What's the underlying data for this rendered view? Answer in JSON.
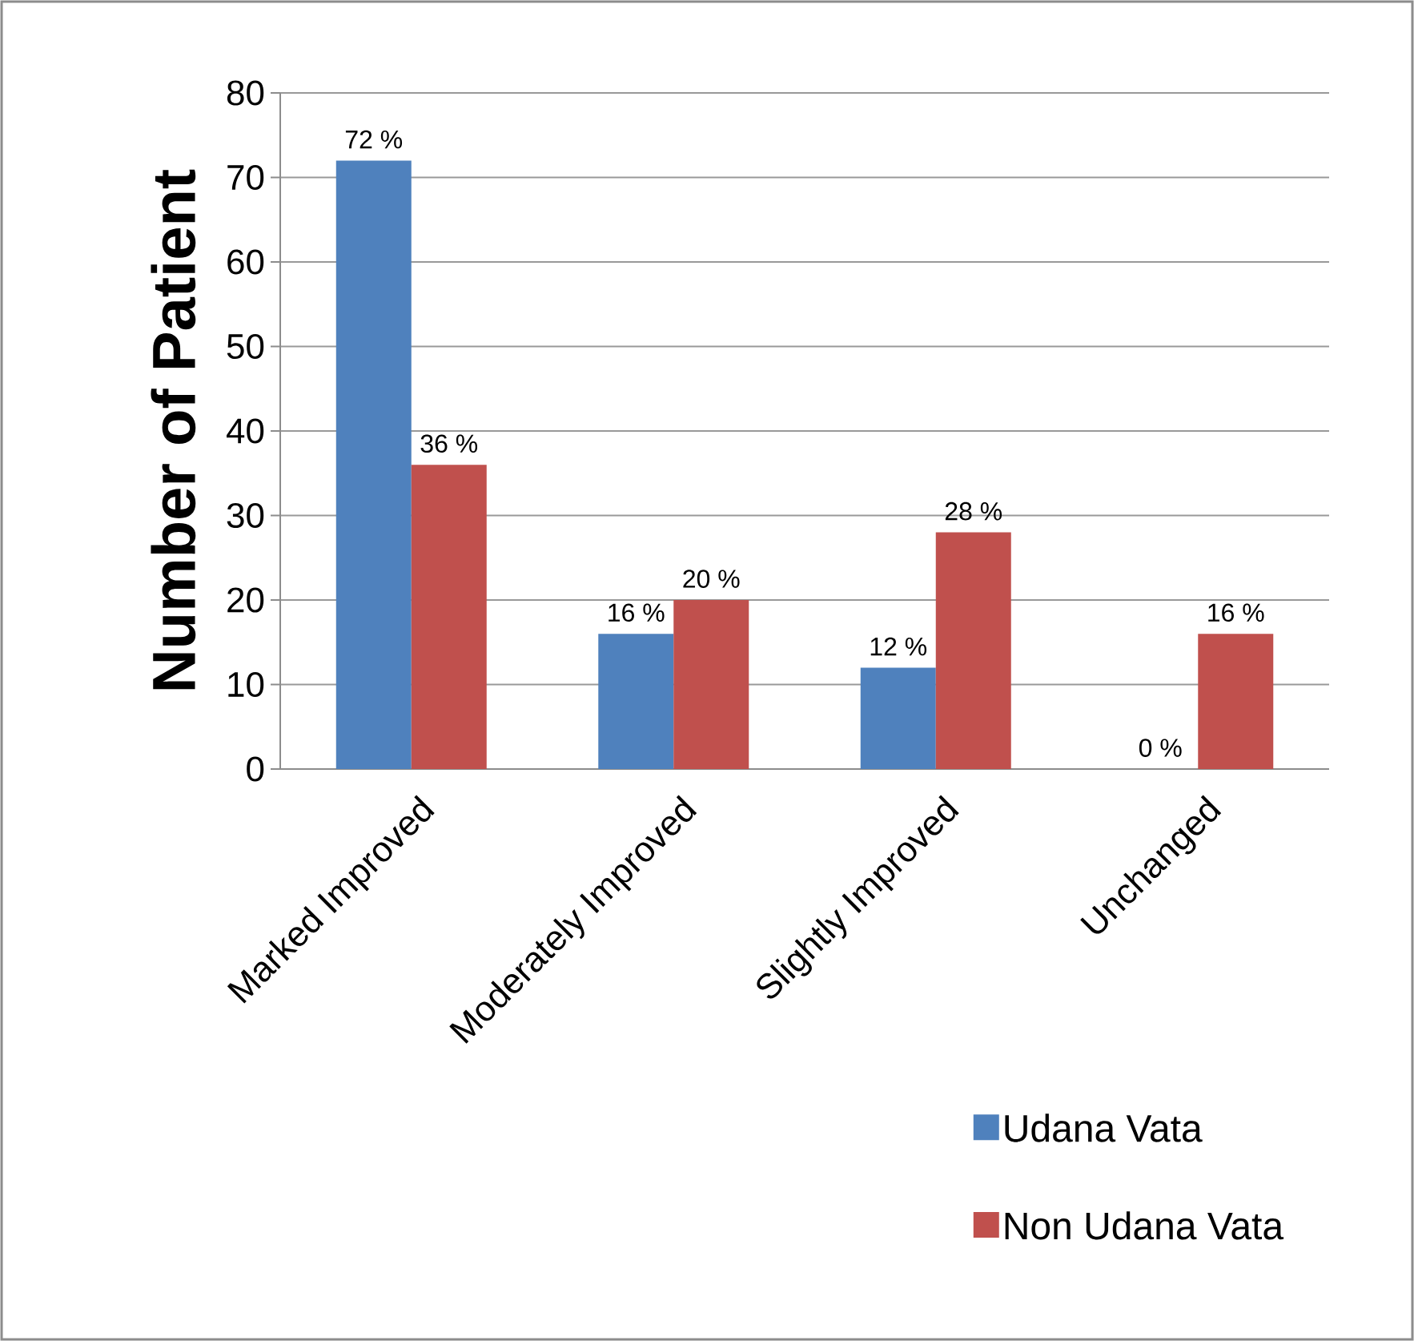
{
  "chart_data": {
    "type": "bar",
    "ylabel": "Number of Patient",
    "categories": [
      "Marked Improved",
      "Moderately Improved",
      "Slightly Improved",
      "Unchanged"
    ],
    "series": [
      {
        "name": "Udana Vata",
        "color": "#4f81bd",
        "values": [
          72,
          16,
          12,
          0
        ],
        "value_labels": [
          "72 %",
          "16 %",
          "12 %",
          "0 %"
        ]
      },
      {
        "name": "Non Udana Vata",
        "color": "#c0504d",
        "values": [
          36,
          20,
          28,
          16
        ],
        "value_labels": [
          "36 %",
          "20 %",
          "28 %",
          "16 %"
        ]
      }
    ],
    "ylim": [
      0,
      80
    ],
    "yticks": [
      0,
      10,
      20,
      30,
      40,
      50,
      60,
      70,
      80
    ],
    "grid": "y",
    "legend": "bottom right"
  }
}
